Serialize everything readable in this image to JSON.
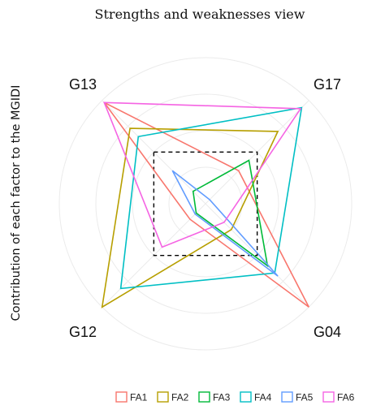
{
  "chart_data": {
    "type": "radar",
    "title": "Strengths and weaknesses view",
    "ylabel": "Contribution of each factor to the MGIDI",
    "axes": [
      "G13",
      "G17",
      "G04",
      "G12"
    ],
    "reference_level": 0.5,
    "rlim": [
      0,
      1
    ],
    "grid": true,
    "legend_position": "bottom",
    "series": [
      {
        "name": "FA1",
        "color": "#F8766D",
        "values": [
          0.98,
          0.32,
          1.0,
          0.15
        ]
      },
      {
        "name": "FA2",
        "color": "#B79F00",
        "values": [
          0.73,
          0.7,
          0.25,
          1.0
        ]
      },
      {
        "name": "FA3",
        "color": "#00BA38",
        "values": [
          0.12,
          0.42,
          0.6,
          0.09
        ]
      },
      {
        "name": "FA4",
        "color": "#00BFC4",
        "values": [
          0.65,
          0.93,
          0.67,
          0.82
        ]
      },
      {
        "name": "FA5",
        "color": "#619CFF",
        "values": [
          0.32,
          0.04,
          0.7,
          0.1
        ]
      },
      {
        "name": "FA6",
        "color": "#F564E3",
        "values": [
          0.98,
          0.92,
          0.18,
          0.42
        ]
      }
    ]
  }
}
